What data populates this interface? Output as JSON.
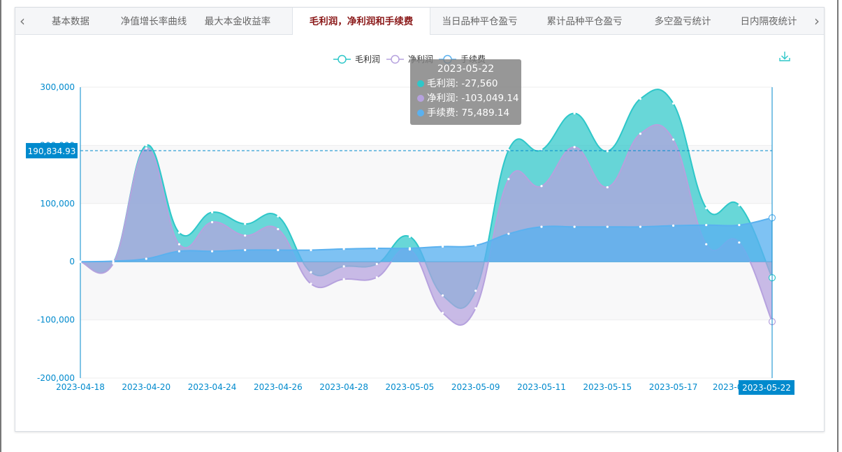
{
  "tabs": [
    {
      "label": "基本数据",
      "active": false
    },
    {
      "label": "净值增长率曲线",
      "active": false
    },
    {
      "label": "最大本金收益率",
      "active": false
    },
    {
      "label": "毛利润，净利润和手续费",
      "active": true
    },
    {
      "label": "当日品种平仓盈亏",
      "active": false
    },
    {
      "label": "累计品种平仓盈亏",
      "active": false
    },
    {
      "label": "多空盈亏统计",
      "active": false
    },
    {
      "label": "日内隔夜统计",
      "active": false
    }
  ],
  "tooltip": {
    "title": "2023-05-22",
    "rows": [
      {
        "text": "毛利润: -27,560",
        "color": "#2ec7c9"
      },
      {
        "text": "净利润: -103,049.14",
        "color": "#b6a2de"
      },
      {
        "text": "手续费: 75,489.14",
        "color": "#5ab1ef"
      }
    ]
  },
  "crosshair": {
    "y_value": 190834.93,
    "y_label": "190,834.93",
    "x_label": "2023-05-22"
  },
  "toolbar": {
    "download_icon": "download-icon"
  },
  "chart_data": {
    "type": "area",
    "x": [
      "2023-04-18",
      "2023-04-19",
      "2023-04-20",
      "2023-04-21",
      "2023-04-24",
      "2023-04-25",
      "2023-04-26",
      "2023-04-27",
      "2023-04-28",
      "2023-05-04",
      "2023-05-05",
      "2023-05-08",
      "2023-05-09",
      "2023-05-10",
      "2023-05-11",
      "2023-05-12",
      "2023-05-15",
      "2023-05-16",
      "2023-05-17",
      "2023-05-18",
      "2023-05-19",
      "2023-05-22"
    ],
    "x_tick_labels": [
      "2023-04-18",
      "2023-04-20",
      "2023-04-24",
      "2023-04-26",
      "2023-04-28",
      "2023-05-05",
      "2023-05-09",
      "2023-05-11",
      "2023-05-15",
      "2023-05-17",
      "2023-05-19",
      "2023-05-22"
    ],
    "series": [
      {
        "name": "毛利润",
        "color": "#2ec7c9",
        "values": [
          0,
          -2000,
          200000,
          50000,
          85000,
          65000,
          78000,
          -18000,
          -8000,
          -4000,
          43000,
          -58000,
          -50000,
          192000,
          192000,
          255000,
          190000,
          280000,
          272000,
          92000,
          97000,
          -27560
        ]
      },
      {
        "name": "净利润",
        "color": "#b6a2de",
        "values": [
          0,
          -3000,
          195000,
          30000,
          68000,
          45000,
          56000,
          -38000,
          -30000,
          -27000,
          21000,
          -88000,
          -80000,
          142000,
          130000,
          197000,
          128000,
          220000,
          210000,
          30000,
          33000,
          -103049.14
        ]
      },
      {
        "name": "手续费",
        "color": "#5ab1ef",
        "values": [
          0,
          1000,
          5000,
          18000,
          18000,
          20000,
          20000,
          20000,
          22000,
          23000,
          23000,
          26000,
          28000,
          48000,
          60000,
          60000,
          60000,
          60000,
          62000,
          63000,
          63000,
          75489.14
        ]
      }
    ],
    "yticks": [
      -200000,
      -100000,
      0,
      100000,
      200000,
      300000
    ],
    "ytick_labels": [
      "-200,000",
      "-100,000",
      "0",
      "100,000",
      "200,000",
      "300,000"
    ],
    "ylim": [
      -200000,
      300000
    ],
    "legend": [
      "毛利润",
      "净利润",
      "手续费"
    ],
    "legend_position": "top-center",
    "grid": true,
    "xlabel": "",
    "ylabel": "",
    "title": ""
  }
}
